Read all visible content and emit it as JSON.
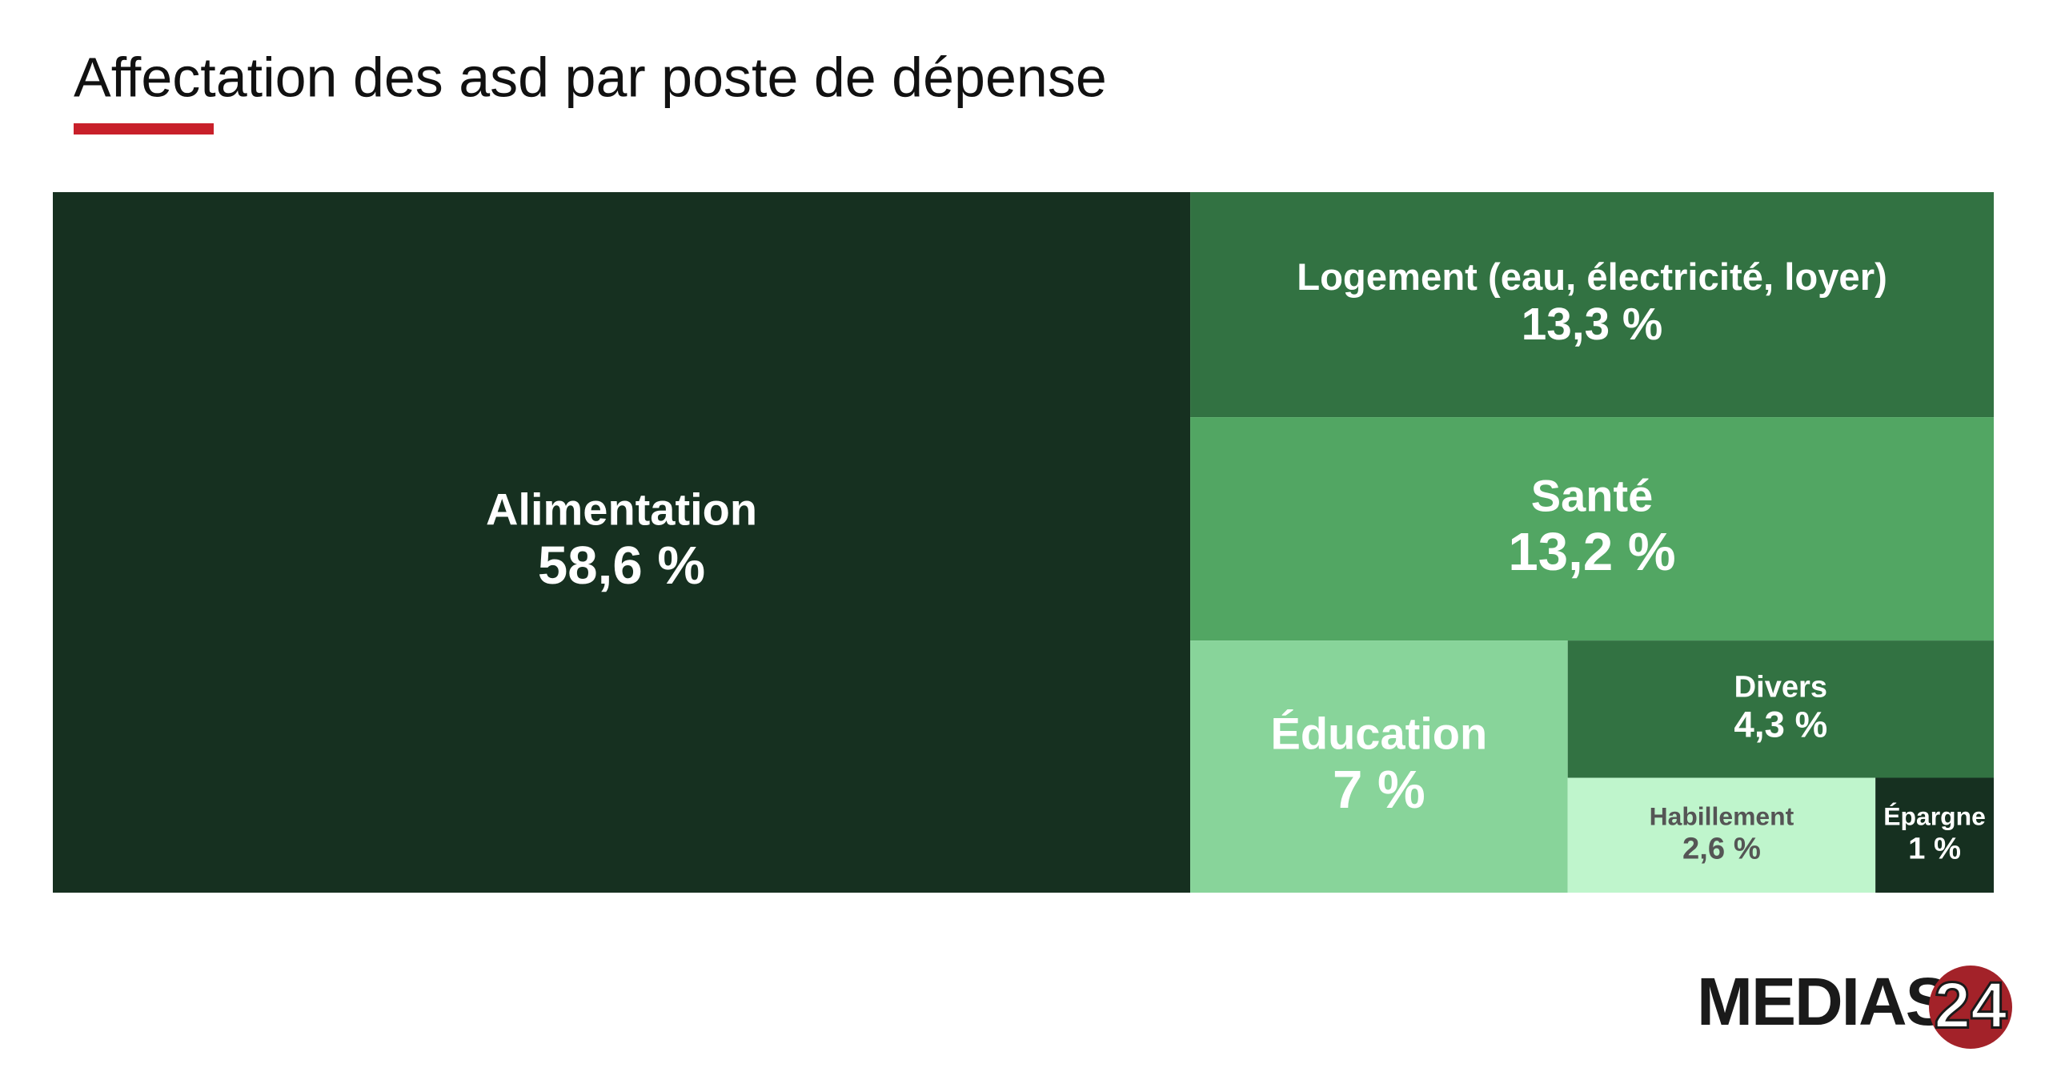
{
  "chart_data": {
    "type": "treemap",
    "title": "Affectation des asd par poste de dépense",
    "categories": [
      "Alimentation",
      "Logement (eau, électricité, loyer)",
      "Santé",
      "Éducation",
      "Divers",
      "Habillement",
      "Épargne"
    ],
    "values": [
      58.6,
      13.3,
      13.2,
      7,
      4.3,
      2.6,
      1
    ],
    "value_labels": [
      "58,6 %",
      "13,3 %",
      "13,2 %",
      "7 %",
      "4,3 %",
      "2,6 %",
      "1 %"
    ],
    "colors": [
      "#163020",
      "#327242",
      "#52a663",
      "#88d49a",
      "#327242",
      "#bff5cc",
      "#163020"
    ]
  },
  "logo": {
    "text": "MEDIAS",
    "number": "24"
  }
}
